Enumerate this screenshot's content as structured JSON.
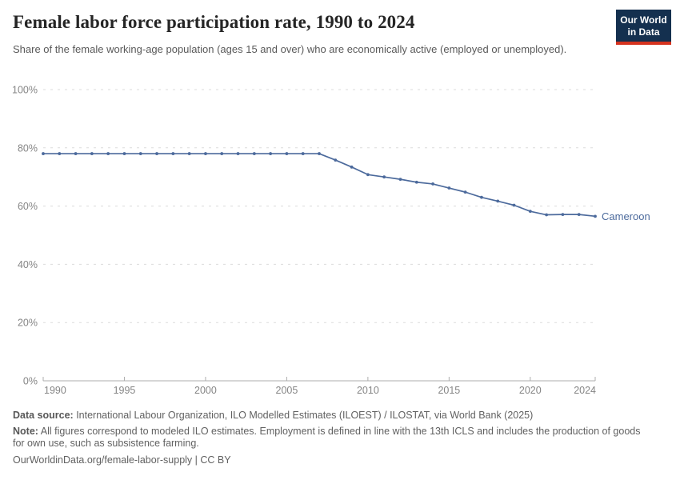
{
  "header": {
    "title": "Female labor force participation rate, 1990 to 2024",
    "subtitle": "Share of the female working-age population (ages 15 and over) who are economically active (employed or unemployed).",
    "logo": {
      "line1": "Our World",
      "line2": "in Data"
    }
  },
  "chart_data": {
    "type": "line",
    "title": "Female labor force participation rate, 1990 to 2024",
    "xlabel": "",
    "ylabel": "",
    "xlim": [
      1990,
      2024
    ],
    "ylim": [
      0,
      100
    ],
    "grid": "horizontal-dashed",
    "legend_position": "end-of-line-label",
    "x": [
      1990,
      1991,
      1992,
      1993,
      1994,
      1995,
      1996,
      1997,
      1998,
      1999,
      2000,
      2001,
      2002,
      2003,
      2004,
      2005,
      2006,
      2007,
      2008,
      2009,
      2010,
      2011,
      2012,
      2013,
      2014,
      2015,
      2016,
      2017,
      2018,
      2019,
      2020,
      2021,
      2022,
      2023,
      2024
    ],
    "series": [
      {
        "name": "Cameroon",
        "color": "#4C6A9C",
        "values": [
          78,
          78,
          78,
          78,
          78,
          78,
          78,
          78,
          78,
          78,
          78,
          78,
          78,
          78,
          78,
          78,
          78,
          78,
          75.8,
          73.4,
          70.8,
          70.0,
          69.2,
          68.2,
          67.6,
          66.2,
          64.8,
          63.0,
          61.7,
          60.3,
          58.2,
          57.0,
          57.1,
          57.1,
          56.5
        ]
      }
    ],
    "yticks": [
      0,
      20,
      40,
      60,
      80,
      100
    ],
    "ytick_labels": [
      "0%",
      "20%",
      "40%",
      "60%",
      "80%",
      "100%"
    ],
    "xticks": [
      1990,
      1995,
      2000,
      2005,
      2010,
      2015,
      2020,
      2024
    ],
    "xtick_labels": [
      "1990",
      "1995",
      "2000",
      "2005",
      "2010",
      "2015",
      "2020",
      "2024"
    ],
    "end_label": "Cameroon"
  },
  "colors": {
    "line": "#4C6A9C",
    "grid": "#DBDBDB",
    "axis": "#ADADAD",
    "tick_text": "#858585",
    "entity_label": "#4C6A9C"
  },
  "footer": {
    "data_source_label": "Data source:",
    "data_source_text": " International Labour Organization, ILO Modelled Estimates (ILOEST) / ILOSTAT, via World Bank (2025)",
    "note_label": "Note:",
    "note_text": " All figures correspond to modeled ILO estimates. Employment is defined in line with the 13th ICLS and includes the production of goods for own use, such as subsistence farming.",
    "url_text": "OurWorldinData.org/female-labor-supply",
    "separator": " | ",
    "license": "CC BY"
  }
}
